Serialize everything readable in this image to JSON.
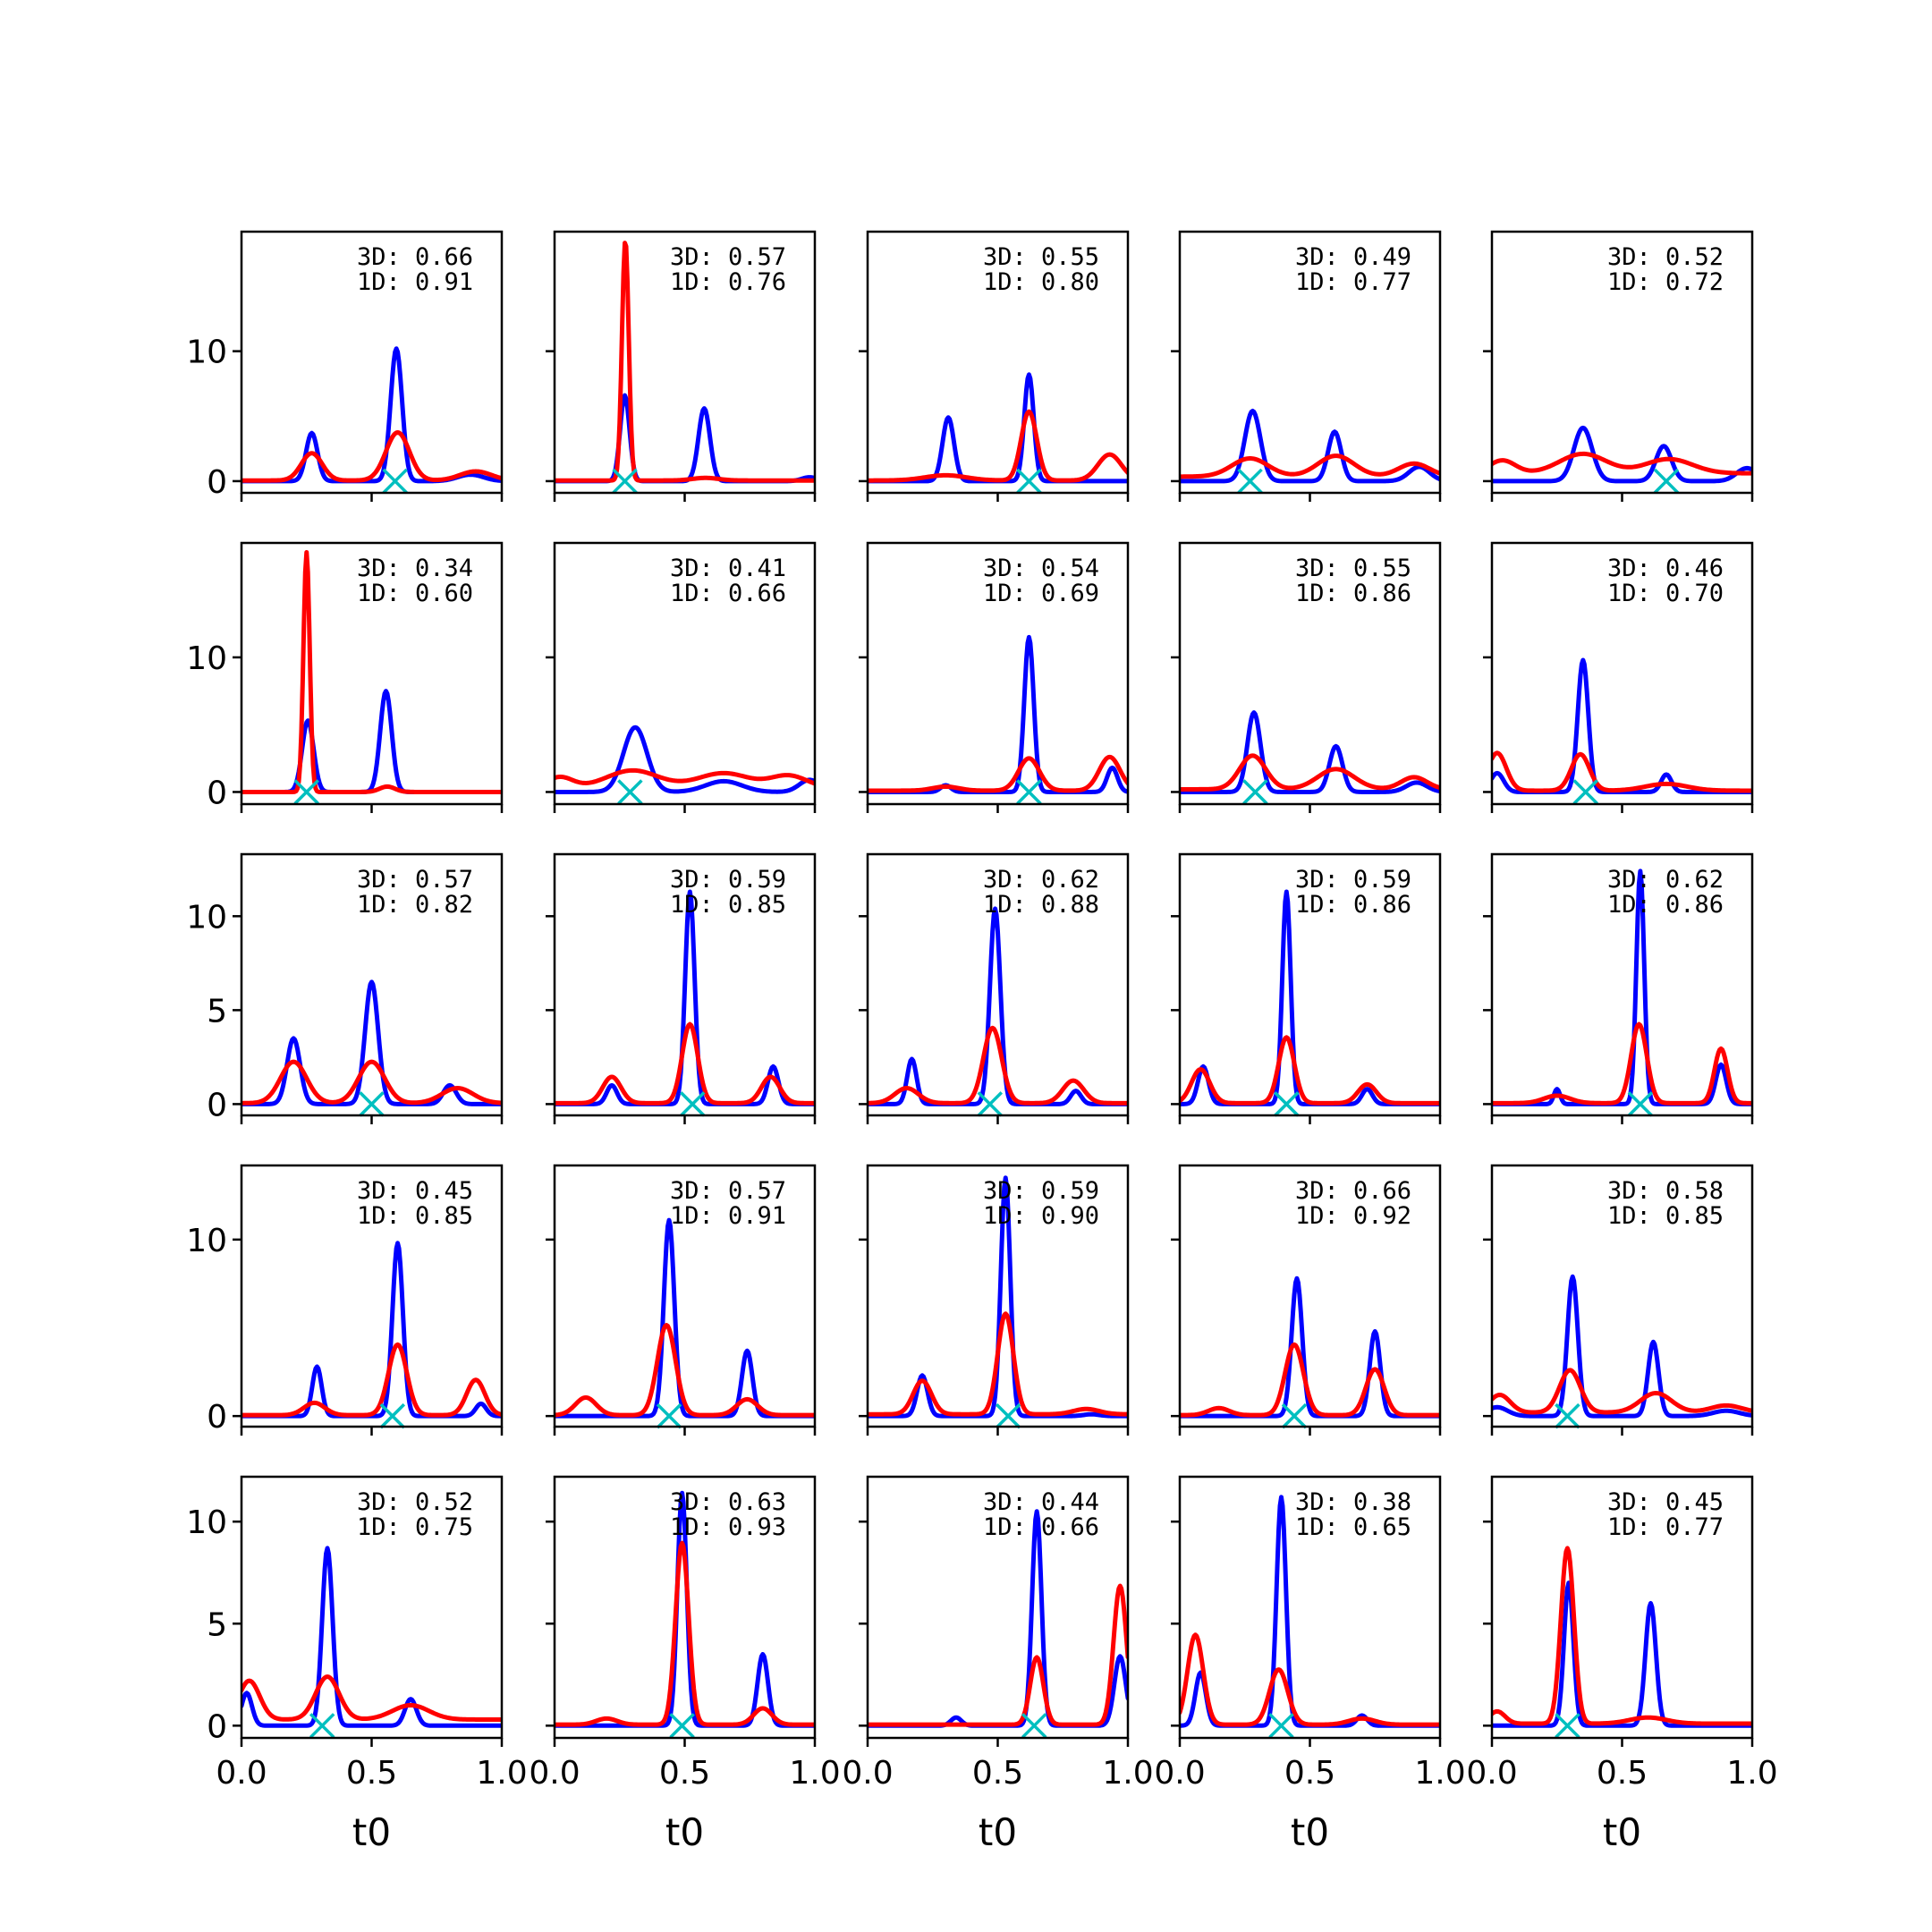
{
  "colors": {
    "blue_series": "#0000ff",
    "red_series": "#ff0000",
    "marker": "#00bfbf"
  },
  "chart_data": {
    "type": "line",
    "layout": "5x5 grid",
    "xlabel": "t0",
    "xlim": [
      0.0,
      1.0
    ],
    "xticks": [
      "0.0",
      "0.5",
      "1.0"
    ],
    "row_ylims": [
      [
        -0.9,
        19.2
      ],
      [
        -0.9,
        18.5
      ],
      [
        -0.6,
        13.3
      ],
      [
        -0.6,
        14.2
      ],
      [
        -0.6,
        12.2
      ]
    ],
    "row_yticks": [
      [
        "0",
        "10"
      ],
      [
        "0",
        "10"
      ],
      [
        "0",
        "5",
        "10"
      ],
      [
        "0",
        "10"
      ],
      [
        "0",
        "5",
        "10"
      ]
    ],
    "panels": [
      {
        "label_3d": "3D: 0.66",
        "label_1d": "1D: 0.91",
        "marker_x": 0.59,
        "blue": [
          [
            0.27,
            3.7,
            0.022
          ],
          [
            0.595,
            10.2,
            0.022
          ],
          [
            0.88,
            0.5,
            0.05
          ]
        ],
        "red": [
          [
            0.27,
            2.1,
            0.04
          ],
          [
            0.6,
            3.7,
            0.045
          ],
          [
            0.9,
            0.7,
            0.06
          ]
        ],
        "red_base": 0.05
      },
      {
        "label_3d": "3D: 0.57",
        "label_1d": "1D: 0.76",
        "marker_x": 0.27,
        "blue": [
          [
            0.27,
            6.6,
            0.018
          ],
          [
            0.575,
            5.6,
            0.022
          ],
          [
            0.98,
            0.3,
            0.03
          ]
        ],
        "red": [
          [
            0.272,
            18.5,
            0.013
          ],
          [
            0.58,
            0.2,
            0.05
          ]
        ],
        "red_base": 0.05
      },
      {
        "label_3d": "3D: 0.55",
        "label_1d": "1D: 0.80",
        "marker_x": 0.62,
        "blue": [
          [
            0.31,
            4.9,
            0.022
          ],
          [
            0.62,
            8.2,
            0.018
          ]
        ],
        "red": [
          [
            0.3,
            0.4,
            0.08
          ],
          [
            0.62,
            5.3,
            0.03
          ],
          [
            0.93,
            2.0,
            0.045
          ]
        ],
        "red_base": 0.05
      },
      {
        "label_3d": "3D: 0.49",
        "label_1d": "1D: 0.77",
        "marker_x": 0.27,
        "blue": [
          [
            0.28,
            5.4,
            0.03
          ],
          [
            0.595,
            3.8,
            0.025
          ],
          [
            0.92,
            1.1,
            0.04
          ]
        ],
        "red": [
          [
            0.27,
            1.4,
            0.07
          ],
          [
            0.6,
            1.6,
            0.07
          ],
          [
            0.9,
            1.0,
            0.06
          ]
        ],
        "red_base": 0.35
      },
      {
        "label_3d": "3D: 0.52",
        "label_1d": "1D: 0.72",
        "marker_x": 0.67,
        "blue": [
          [
            0.35,
            4.1,
            0.035
          ],
          [
            0.66,
            2.7,
            0.03
          ],
          [
            0.98,
            1.0,
            0.04
          ]
        ],
        "red": [
          [
            0.04,
            1.0,
            0.05
          ],
          [
            0.35,
            1.5,
            0.09
          ],
          [
            0.68,
            1.1,
            0.09
          ]
        ],
        "red_base": 0.6
      },
      {
        "label_3d": "3D: 0.34",
        "label_1d": "1D: 0.60",
        "marker_x": 0.25,
        "blue": [
          [
            0.255,
            5.3,
            0.022
          ],
          [
            0.555,
            7.5,
            0.022
          ]
        ],
        "red": [
          [
            0.25,
            17.8,
            0.012
          ],
          [
            0.56,
            0.4,
            0.03
          ]
        ],
        "red_base": 0.0
      },
      {
        "label_3d": "3D: 0.41",
        "label_1d": "1D: 0.66",
        "marker_x": 0.29,
        "blue": [
          [
            0.31,
            4.8,
            0.045
          ],
          [
            0.65,
            0.8,
            0.07
          ],
          [
            0.98,
            0.9,
            0.04
          ]
        ],
        "red": [
          [
            0.02,
            0.8,
            0.05
          ],
          [
            0.3,
            1.3,
            0.1
          ],
          [
            0.65,
            1.1,
            0.1
          ],
          [
            0.9,
            0.9,
            0.07
          ]
        ],
        "red_base": 0.3
      },
      {
        "label_3d": "3D: 0.54",
        "label_1d": "1D: 0.69",
        "marker_x": 0.62,
        "blue": [
          [
            0.3,
            0.5,
            0.02
          ],
          [
            0.62,
            11.5,
            0.018
          ],
          [
            0.94,
            1.8,
            0.02
          ]
        ],
        "red": [
          [
            0.3,
            0.3,
            0.05
          ],
          [
            0.62,
            2.4,
            0.04
          ],
          [
            0.93,
            2.5,
            0.04
          ]
        ],
        "red_base": 0.1
      },
      {
        "label_3d": "3D: 0.55",
        "label_1d": "1D: 0.86",
        "marker_x": 0.29,
        "blue": [
          [
            0.285,
            5.9,
            0.025
          ],
          [
            0.6,
            3.4,
            0.025
          ],
          [
            0.91,
            0.7,
            0.04
          ]
        ],
        "red": [
          [
            0.28,
            2.5,
            0.05
          ],
          [
            0.6,
            1.5,
            0.07
          ],
          [
            0.9,
            0.9,
            0.05
          ]
        ],
        "red_base": 0.2
      },
      {
        "label_3d": "3D: 0.46",
        "label_1d": "1D: 0.70",
        "marker_x": 0.36,
        "blue": [
          [
            0.02,
            1.4,
            0.025
          ],
          [
            0.35,
            9.8,
            0.02
          ],
          [
            0.67,
            1.3,
            0.02
          ]
        ],
        "red": [
          [
            0.02,
            2.8,
            0.035
          ],
          [
            0.34,
            2.7,
            0.035
          ],
          [
            0.67,
            0.5,
            0.08
          ]
        ],
        "red_base": 0.1
      },
      {
        "label_3d": "3D: 0.57",
        "label_1d": "1D: 0.82",
        "marker_x": 0.5,
        "blue": [
          [
            0.2,
            3.5,
            0.025
          ],
          [
            0.5,
            6.5,
            0.025
          ],
          [
            0.8,
            1.0,
            0.025
          ]
        ],
        "red": [
          [
            0.2,
            2.2,
            0.05
          ],
          [
            0.5,
            2.2,
            0.05
          ],
          [
            0.83,
            0.8,
            0.06
          ]
        ],
        "red_base": 0.05
      },
      {
        "label_3d": "3D: 0.59",
        "label_1d": "1D: 0.85",
        "marker_x": 0.53,
        "blue": [
          [
            0.22,
            1.0,
            0.02
          ],
          [
            0.52,
            11.3,
            0.018
          ],
          [
            0.84,
            2.0,
            0.02
          ]
        ],
        "red": [
          [
            0.22,
            1.4,
            0.035
          ],
          [
            0.52,
            4.2,
            0.03
          ],
          [
            0.83,
            1.4,
            0.035
          ]
        ],
        "red_base": 0.05
      },
      {
        "label_3d": "3D: 0.62",
        "label_1d": "1D: 0.88",
        "marker_x": 0.47,
        "blue": [
          [
            0.17,
            2.4,
            0.018
          ],
          [
            0.49,
            10.4,
            0.02
          ],
          [
            0.8,
            0.7,
            0.02
          ]
        ],
        "red": [
          [
            0.15,
            0.8,
            0.045
          ],
          [
            0.48,
            4.0,
            0.035
          ],
          [
            0.79,
            1.2,
            0.04
          ]
        ],
        "red_base": 0.05
      },
      {
        "label_3d": "3D: 0.59",
        "label_1d": "1D: 0.86",
        "marker_x": 0.41,
        "blue": [
          [
            0.09,
            2.0,
            0.02
          ],
          [
            0.41,
            11.3,
            0.016
          ],
          [
            0.72,
            0.8,
            0.02
          ]
        ],
        "red": [
          [
            0.08,
            1.8,
            0.035
          ],
          [
            0.41,
            3.5,
            0.03
          ],
          [
            0.72,
            1.0,
            0.035
          ]
        ],
        "red_base": 0.05
      },
      {
        "label_3d": "3D: 0.62",
        "label_1d": "1D: 0.86",
        "marker_x": 0.57,
        "blue": [
          [
            0.25,
            0.8,
            0.012
          ],
          [
            0.57,
            12.4,
            0.015
          ],
          [
            0.88,
            2.1,
            0.02
          ]
        ],
        "red": [
          [
            0.25,
            0.4,
            0.05
          ],
          [
            0.565,
            4.2,
            0.03
          ],
          [
            0.88,
            2.9,
            0.025
          ]
        ],
        "red_base": 0.05
      },
      {
        "label_3d": "3D: 0.45",
        "label_1d": "1D: 0.85",
        "marker_x": 0.58,
        "blue": [
          [
            0.29,
            2.8,
            0.018
          ],
          [
            0.6,
            9.8,
            0.02
          ],
          [
            0.92,
            0.7,
            0.02
          ]
        ],
        "red": [
          [
            0.28,
            0.7,
            0.04
          ],
          [
            0.6,
            4.0,
            0.035
          ],
          [
            0.9,
            2.0,
            0.035
          ]
        ],
        "red_base": 0.05
      },
      {
        "label_3d": "3D: 0.57",
        "label_1d": "1D: 0.91",
        "marker_x": 0.44,
        "blue": [
          [
            0.44,
            11.1,
            0.02
          ],
          [
            0.74,
            3.7,
            0.02
          ]
        ],
        "red": [
          [
            0.12,
            1.0,
            0.04
          ],
          [
            0.43,
            5.1,
            0.035
          ],
          [
            0.74,
            0.9,
            0.04
          ]
        ],
        "red_base": 0.05
      },
      {
        "label_3d": "3D: 0.59",
        "label_1d": "1D: 0.90",
        "marker_x": 0.54,
        "blue": [
          [
            0.21,
            2.3,
            0.02
          ],
          [
            0.53,
            13.5,
            0.018
          ],
          [
            0.86,
            0.1,
            0.03
          ]
        ],
        "red": [
          [
            0.21,
            1.9,
            0.035
          ],
          [
            0.53,
            5.7,
            0.03
          ],
          [
            0.84,
            0.3,
            0.05
          ]
        ],
        "red_base": 0.1
      },
      {
        "label_3d": "3D: 0.66",
        "label_1d": "1D: 0.92",
        "marker_x": 0.44,
        "blue": [
          [
            0.45,
            7.8,
            0.02
          ],
          [
            0.75,
            4.8,
            0.02
          ]
        ],
        "red": [
          [
            0.15,
            0.4,
            0.04
          ],
          [
            0.44,
            4.0,
            0.035
          ],
          [
            0.75,
            2.6,
            0.035
          ]
        ],
        "red_base": 0.05
      },
      {
        "label_3d": "3D: 0.58",
        "label_1d": "1D: 0.85",
        "marker_x": 0.29,
        "blue": [
          [
            0.02,
            0.5,
            0.04
          ],
          [
            0.31,
            7.9,
            0.02
          ],
          [
            0.62,
            4.2,
            0.02
          ],
          [
            0.9,
            0.3,
            0.05
          ]
        ],
        "red": [
          [
            0.03,
            1.0,
            0.04
          ],
          [
            0.3,
            2.4,
            0.04
          ],
          [
            0.63,
            1.1,
            0.06
          ],
          [
            0.9,
            0.4,
            0.06
          ]
        ],
        "red_base": 0.2
      },
      {
        "label_3d": "3D: 0.52",
        "label_1d": "1D: 0.75",
        "marker_x": 0.31,
        "blue": [
          [
            0.02,
            1.6,
            0.02
          ],
          [
            0.33,
            8.7,
            0.02
          ],
          [
            0.65,
            1.3,
            0.022
          ]
        ],
        "red": [
          [
            0.03,
            1.9,
            0.04
          ],
          [
            0.33,
            2.1,
            0.045
          ],
          [
            0.65,
            0.7,
            0.07
          ]
        ],
        "red_base": 0.3
      },
      {
        "label_3d": "3D: 0.63",
        "label_1d": "1D: 0.93",
        "marker_x": 0.49,
        "blue": [
          [
            0.49,
            11.4,
            0.018
          ],
          [
            0.8,
            3.5,
            0.02
          ]
        ],
        "red": [
          [
            0.2,
            0.3,
            0.04
          ],
          [
            0.49,
            8.9,
            0.025
          ],
          [
            0.8,
            0.8,
            0.035
          ]
        ],
        "red_base": 0.05
      },
      {
        "label_3d": "3D: 0.44",
        "label_1d": "1D: 0.66",
        "marker_x": 0.64,
        "blue": [
          [
            0.34,
            0.4,
            0.02
          ],
          [
            0.65,
            10.5,
            0.018
          ],
          [
            0.97,
            3.4,
            0.022
          ]
        ],
        "red": [
          [
            0.65,
            3.3,
            0.025
          ],
          [
            0.97,
            6.8,
            0.025
          ]
        ],
        "red_base": 0.05
      },
      {
        "label_3d": "3D: 0.38",
        "label_1d": "1D: 0.65",
        "marker_x": 0.39,
        "blue": [
          [
            0.08,
            2.6,
            0.02
          ],
          [
            0.39,
            11.2,
            0.018
          ],
          [
            0.7,
            0.5,
            0.02
          ]
        ],
        "red": [
          [
            0.06,
            4.4,
            0.03
          ],
          [
            0.38,
            2.7,
            0.035
          ],
          [
            0.7,
            0.3,
            0.05
          ]
        ],
        "red_base": 0.05
      },
      {
        "label_3d": "3D: 0.45",
        "label_1d": "1D: 0.77",
        "marker_x": 0.29,
        "blue": [
          [
            0.295,
            7.0,
            0.018
          ],
          [
            0.61,
            6.0,
            0.02
          ]
        ],
        "red": [
          [
            0.02,
            0.6,
            0.03
          ],
          [
            0.29,
            8.6,
            0.025
          ],
          [
            0.6,
            0.3,
            0.07
          ]
        ],
        "red_base": 0.1
      }
    ]
  }
}
